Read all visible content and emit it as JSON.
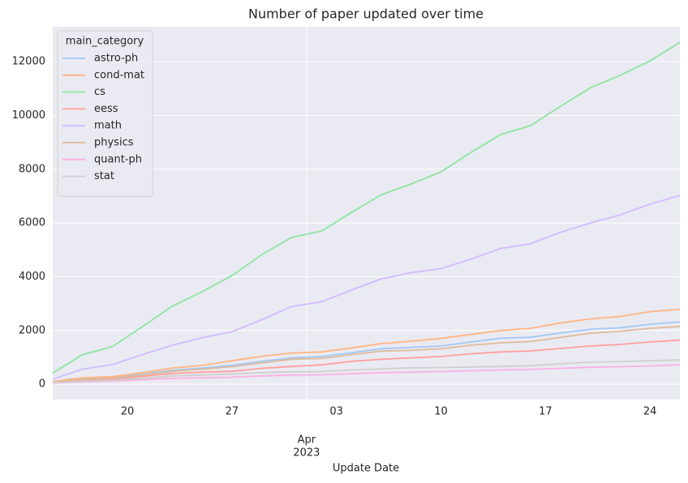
{
  "chart_data": {
    "type": "line",
    "title": "Number of paper updated over time",
    "xlabel": "Update Date",
    "legend_title": "main_category",
    "legend": "upper left",
    "grid": true,
    "x": [
      "2023-03-15",
      "2023-03-17",
      "2023-03-19",
      "2023-03-21",
      "2023-03-23",
      "2023-03-25",
      "2023-03-27",
      "2023-03-29",
      "2023-03-31",
      "2023-04-02",
      "2023-04-04",
      "2023-04-06",
      "2023-04-08",
      "2023-04-10",
      "2023-04-12",
      "2023-04-14",
      "2023-04-16",
      "2023-04-18",
      "2023-04-20",
      "2023-04-22",
      "2023-04-24",
      "2023-04-26"
    ],
    "xlim": [
      "2023-03-15",
      "2023-04-26"
    ],
    "xticks": [
      {
        "value": "2023-03-20",
        "label": "20"
      },
      {
        "value": "2023-03-27",
        "label": "27"
      },
      {
        "value": "2023-04-01",
        "label": [
          "Apr",
          "2023"
        ]
      },
      {
        "value": "2023-04-03",
        "label": "03"
      },
      {
        "value": "2023-04-10",
        "label": "10"
      },
      {
        "value": "2023-04-17",
        "label": "17"
      },
      {
        "value": "2023-04-24",
        "label": "24"
      }
    ],
    "ylim": [
      -570,
      13300
    ],
    "yticks": [
      0,
      2000,
      4000,
      6000,
      8000,
      10000,
      12000
    ],
    "series": [
      {
        "name": "astro-ph",
        "color": "#a1c9f4",
        "values": [
          90,
          200,
          240,
          370,
          520,
          600,
          700,
          850,
          980,
          1030,
          1170,
          1320,
          1370,
          1420,
          1570,
          1710,
          1750,
          1910,
          2040,
          2100,
          2230,
          2320
        ]
      },
      {
        "name": "cond-mat",
        "color": "#ffb482",
        "values": [
          100,
          240,
          280,
          430,
          600,
          700,
          870,
          1040,
          1160,
          1200,
          1350,
          1510,
          1600,
          1700,
          1850,
          2000,
          2080,
          2280,
          2430,
          2520,
          2700,
          2790
        ]
      },
      {
        "name": "cs",
        "color": "#8de5a1",
        "values": [
          420,
          1100,
          1400,
          2140,
          2900,
          3440,
          4040,
          4820,
          5460,
          5700,
          6390,
          7050,
          7450,
          7900,
          8620,
          9290,
          9620,
          10340,
          11030,
          11490,
          12030,
          12720
        ]
      },
      {
        "name": "eess",
        "color": "#ff9f9b",
        "values": [
          60,
          140,
          180,
          290,
          400,
          450,
          480,
          590,
          660,
          720,
          850,
          930,
          980,
          1030,
          1130,
          1200,
          1240,
          1330,
          1420,
          1480,
          1570,
          1640
        ]
      },
      {
        "name": "math",
        "color": "#d0bbff",
        "values": [
          190,
          560,
          730,
          1100,
          1450,
          1730,
          1950,
          2400,
          2890,
          3070,
          3500,
          3920,
          4150,
          4300,
          4650,
          5050,
          5230,
          5650,
          6000,
          6300,
          6700,
          7020
        ]
      },
      {
        "name": "physics",
        "color": "#debb9b",
        "values": [
          80,
          180,
          220,
          340,
          480,
          560,
          650,
          790,
          930,
          960,
          1100,
          1230,
          1260,
          1320,
          1450,
          1540,
          1590,
          1740,
          1900,
          1970,
          2080,
          2150
        ]
      },
      {
        "name": "quant-ph",
        "color": "#fab0e4",
        "values": [
          40,
          90,
          110,
          170,
          220,
          240,
          260,
          310,
          340,
          350,
          390,
          430,
          450,
          470,
          500,
          530,
          550,
          590,
          630,
          650,
          680,
          720
        ]
      },
      {
        "name": "stat",
        "color": "#cfcfcf",
        "values": [
          50,
          110,
          140,
          220,
          310,
          340,
          380,
          430,
          460,
          470,
          530,
          570,
          610,
          620,
          640,
          660,
          690,
          760,
          820,
          840,
          870,
          900
        ]
      }
    ]
  }
}
